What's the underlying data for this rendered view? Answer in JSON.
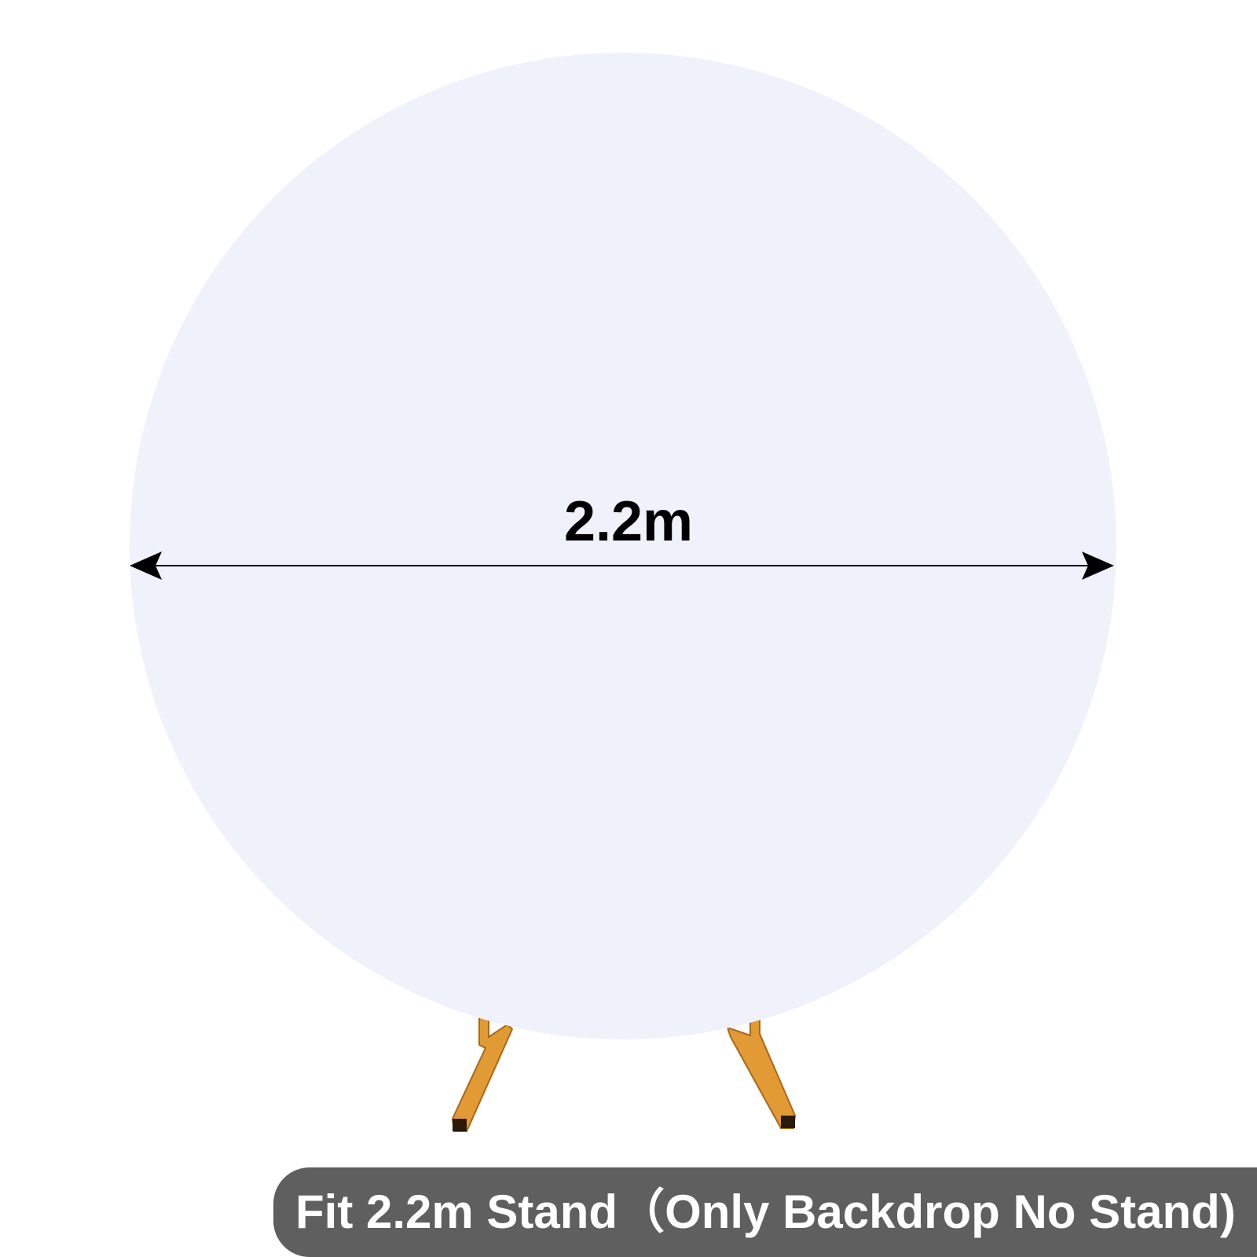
{
  "dimension": {
    "label": "2.2m"
  },
  "caption": {
    "text": "Fit 2.2m Stand（Only Backdrop No Stand)"
  },
  "colors": {
    "backdrop": "#eff2fb",
    "stand": "#e29a34",
    "caption_bg": "#5f5f5f",
    "arrow": "#000000"
  },
  "icons": [
    "double-arrow-icon"
  ]
}
